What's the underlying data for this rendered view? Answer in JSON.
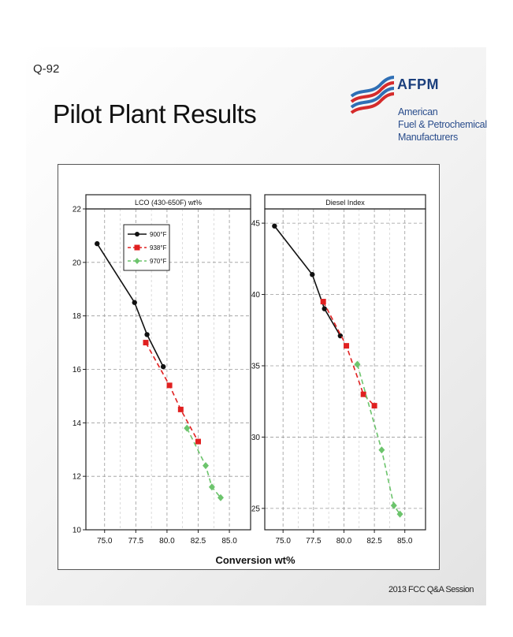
{
  "slide": {
    "question_number": "Q-92",
    "title": "Pilot Plant Results",
    "footer": "2013 FCC Q&A Session"
  },
  "logo": {
    "abbr": "AFPM",
    "line1": "American",
    "line2": "Fuel & Petrochemical",
    "line3": "Manufacturers",
    "colors": {
      "navy": "#1b3f7d",
      "red": "#d52b2b",
      "blue": "#2f6fb5"
    }
  },
  "chart_data": {
    "type": "line",
    "xlabel": "Conversion wt%",
    "x_ticks": [
      "75.0",
      "77.5",
      "80.0",
      "82.5",
      "85.0"
    ],
    "xlim": [
      73.5,
      86.7
    ],
    "legend_position": "top-left of left panel",
    "grid": true,
    "series_styles": [
      {
        "name": "900°F",
        "color": "#111111",
        "marker": "circle",
        "line": "solid"
      },
      {
        "name": "938°F",
        "color": "#e02020",
        "marker": "square",
        "line": "dashed"
      },
      {
        "name": "970°F",
        "color": "#6cc46c",
        "marker": "diamond",
        "line": "dashed"
      }
    ],
    "panels": [
      {
        "title": "LCO (430-650F) wt%",
        "ylim": [
          10,
          22
        ],
        "y_ticks": [
          "10",
          "12",
          "14",
          "16",
          "18",
          "20",
          "22"
        ],
        "series": [
          {
            "name": "900°F",
            "x": [
              74.4,
              77.4,
              78.4,
              79.7
            ],
            "y": [
              20.7,
              18.5,
              17.3,
              16.1
            ]
          },
          {
            "name": "938°F",
            "x": [
              78.3,
              80.2,
              81.1,
              82.5
            ],
            "y": [
              17.0,
              15.4,
              14.5,
              13.3
            ]
          },
          {
            "name": "970°F",
            "x": [
              81.6,
              83.1,
              83.6,
              84.3
            ],
            "y": [
              13.8,
              12.4,
              11.6,
              11.2
            ]
          }
        ]
      },
      {
        "title": "Diesel Index",
        "ylim": [
          23.5,
          46
        ],
        "y_ticks": [
          "25",
          "30",
          "35",
          "40",
          "45"
        ],
        "series": [
          {
            "name": "900°F",
            "x": [
              74.3,
              77.4,
              78.4,
              79.7
            ],
            "y": [
              44.8,
              41.4,
              39.0,
              37.1
            ]
          },
          {
            "name": "938°F",
            "x": [
              78.3,
              80.2,
              81.6,
              82.5
            ],
            "y": [
              39.5,
              36.4,
              33.0,
              32.2
            ]
          },
          {
            "name": "970°F",
            "x": [
              81.1,
              83.1,
              84.1,
              84.6
            ],
            "y": [
              35.1,
              29.1,
              25.2,
              24.6
            ]
          }
        ]
      }
    ]
  }
}
